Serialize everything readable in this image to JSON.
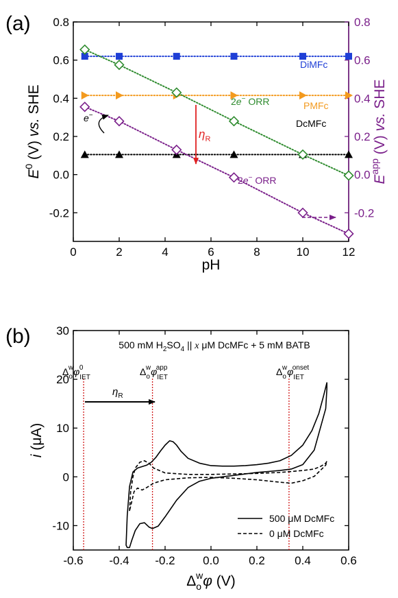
{
  "colors": {
    "axis": "#000000",
    "right_axis": "#7a1f8a",
    "dimfc": "#1f3fd6",
    "pmfc": "#f39a1e",
    "dcmfc": "#000000",
    "orr_green": "#2e8b2e",
    "orr_purple": "#7a1f8a",
    "eta_arrow": "#e02020",
    "vline": "#d01818"
  },
  "chart_data": [
    {
      "type": "scatter",
      "panel_label": "(a)",
      "xlabel": "pH",
      "ylabel_left": "E 0 (V) vs. SHE",
      "ylabel_right": "E app (V) vs. SHE",
      "xlim": [
        0,
        12
      ],
      "ylim": [
        -0.35,
        0.8
      ],
      "xticks": [
        "0",
        "2",
        "4",
        "6",
        "8",
        "10",
        "12"
      ],
      "yticks": [
        "-0.2",
        "0.0",
        "0.2",
        "0.4",
        "0.6",
        "0.8"
      ],
      "grid": false,
      "series": [
        {
          "name": "DiMFc",
          "marker": "square",
          "x": [
            0.5,
            2,
            4.5,
            7,
            10,
            12
          ],
          "y": [
            0.62,
            0.62,
            0.62,
            0.62,
            0.62,
            0.62
          ]
        },
        {
          "name": "PMFc",
          "marker": "triangle-right",
          "x": [
            0.5,
            2,
            4.5,
            7,
            10,
            12
          ],
          "y": [
            0.415,
            0.415,
            0.415,
            0.415,
            0.415,
            0.415
          ]
        },
        {
          "name": "DcMFc",
          "marker": "triangle-up",
          "x": [
            0.5,
            2,
            4.5,
            7,
            10,
            12
          ],
          "y": [
            0.105,
            0.105,
            0.105,
            0.105,
            0.105,
            0.105
          ]
        },
        {
          "name": "2e− ORR",
          "marker": "diamond",
          "x": [
            0.5,
            2,
            4.5,
            7,
            10,
            12
          ],
          "y": [
            0.655,
            0.575,
            0.43,
            0.28,
            0.105,
            -0.005
          ]
        },
        {
          "name": "2e− ORR",
          "marker": "diamond",
          "x": [
            0.5,
            2,
            4.5,
            7,
            10,
            12
          ],
          "y": [
            0.355,
            0.28,
            0.13,
            -0.015,
            -0.2,
            -0.31
          ]
        }
      ],
      "labels": {
        "dimfc": "DiMFc",
        "pmfc": "PMFc",
        "dcmfc": "DcMFc",
        "orr_top_sup": "−",
        "orr": "ORR",
        "e_minus": "e",
        "e_minus_sup": "−",
        "eta": "η",
        "eta_sub": "R",
        "two": "2",
        "e": "e"
      }
    },
    {
      "type": "line",
      "panel_label": "(b)",
      "title": "500 mM H2SO4 || x μM DcMFc + 5 mM BATB",
      "xlabel": "Δowφ (V)",
      "ylabel": "i (μA)",
      "xlim": [
        -0.6,
        0.6
      ],
      "ylim": [
        -15,
        30
      ],
      "xticks": [
        "-0.6",
        "-0.4",
        "-0.2",
        "0.0",
        "0.2",
        "0.4",
        "0.6"
      ],
      "yticks": [
        "-10",
        "0",
        "10",
        "20",
        "30"
      ],
      "grid": false,
      "vlines": [
        {
          "x": -0.555,
          "label": "ΔowφIET0"
        },
        {
          "x": -0.255,
          "label": "ΔowφIETapp"
        },
        {
          "x": 0.34,
          "label": "ΔowφIETonset"
        }
      ],
      "annotation": {
        "text": "ηR",
        "x_from": -0.555,
        "x_to": -0.255,
        "y": 15.5
      },
      "legend": {
        "placement": "bottom-right",
        "items": [
          "500 μM DcMFc",
          "0 μM DcMFc"
        ]
      },
      "series": [
        {
          "name": "500 μM DcMFc",
          "style": "solid",
          "x": [
            -0.37,
            -0.365,
            -0.355,
            -0.34,
            -0.32,
            -0.3,
            -0.28,
            -0.26,
            -0.24,
            -0.22,
            -0.2,
            -0.18,
            -0.165,
            -0.15,
            -0.13,
            -0.1,
            -0.05,
            0,
            0.05,
            0.1,
            0.15,
            0.2,
            0.25,
            0.3,
            0.35,
            0.4,
            0.44,
            0.47,
            0.49,
            0.505,
            0.505,
            0.5,
            0.45,
            0.4,
            0.35,
            0.3,
            0.25,
            0.2,
            0.15,
            0.1,
            0.05,
            0,
            -0.05,
            -0.1,
            -0.15,
            -0.2,
            -0.23,
            -0.255,
            -0.27,
            -0.29,
            -0.31,
            -0.33,
            -0.345,
            -0.355,
            -0.365
          ],
          "y": [
            -14,
            -8,
            -2,
            1,
            1.8,
            2.1,
            2.4,
            3,
            4,
            5.3,
            6.5,
            7.4,
            7.2,
            6.5,
            5.2,
            3.8,
            2.8,
            2.3,
            2.2,
            2.2,
            2.3,
            2.5,
            2.8,
            3.3,
            4.4,
            6.5,
            9.5,
            13,
            16.5,
            19.3,
            18,
            14,
            5.5,
            2.5,
            1.6,
            1.3,
            1.1,
            0.9,
            0.6,
            0.3,
            0,
            -0.3,
            -0.9,
            -2.2,
            -4.8,
            -8.2,
            -10.1,
            -10.6,
            -10.3,
            -9.4,
            -9.6,
            -11,
            -13,
            -14.5,
            -14.5
          ]
        },
        {
          "name": "0 μM DcMFc",
          "style": "dashed",
          "x": [
            -0.355,
            -0.35,
            -0.34,
            -0.33,
            -0.31,
            -0.29,
            -0.27,
            -0.25,
            -0.2,
            -0.1,
            0,
            0.1,
            0.2,
            0.3,
            0.35,
            0.4,
            0.45,
            0.48,
            0.5,
            0.505,
            0.5,
            0.45,
            0.4,
            0.35,
            0.3,
            0.2,
            0.1,
            0,
            -0.1,
            -0.2,
            -0.25,
            -0.28,
            -0.3,
            -0.32,
            -0.335,
            -0.345,
            -0.355
          ],
          "y": [
            -7,
            -3,
            0,
            1.8,
            3,
            3.3,
            2.8,
            1.8,
            0.8,
            0.5,
            0.5,
            0.6,
            0.7,
            0.9,
            1.1,
            1.3,
            1.6,
            2.2,
            2.8,
            3.2,
            2.4,
            0.1,
            -0.8,
            -1.3,
            -1.1,
            -0.6,
            -0.3,
            -0.1,
            -0.2,
            -0.6,
            -1.3,
            -2.2,
            -2.7,
            -2.3,
            -3,
            -5,
            -7
          ]
        }
      ]
    }
  ],
  "panel_b_labels": {
    "vline0_sup": "0",
    "vline1_sup": "app",
    "vline2_sup": "onset",
    "delta": "Δ",
    "sub_o": "o",
    "sup_w": "w",
    "phi": "φ",
    "iet": "IET",
    "eta": "η",
    "eta_sub": "R",
    "title_main": "500 mM H",
    "title_sub2": "2",
    "title_so": "SO",
    "title_sub4": "4",
    "title_mid": " || ",
    "title_x": "x",
    "title_rest": " μM DcMFc + 5 mM BATB",
    "ylabel_i": "i",
    "ylabel_unit": " (μA)",
    "xlabel_unit": " (V)"
  },
  "panel_a_axis_labels": {
    "E": "E",
    "sup0": "0",
    "unit": " (V) ",
    "vs": "vs.",
    "she": " SHE",
    "sup_app": "app"
  }
}
